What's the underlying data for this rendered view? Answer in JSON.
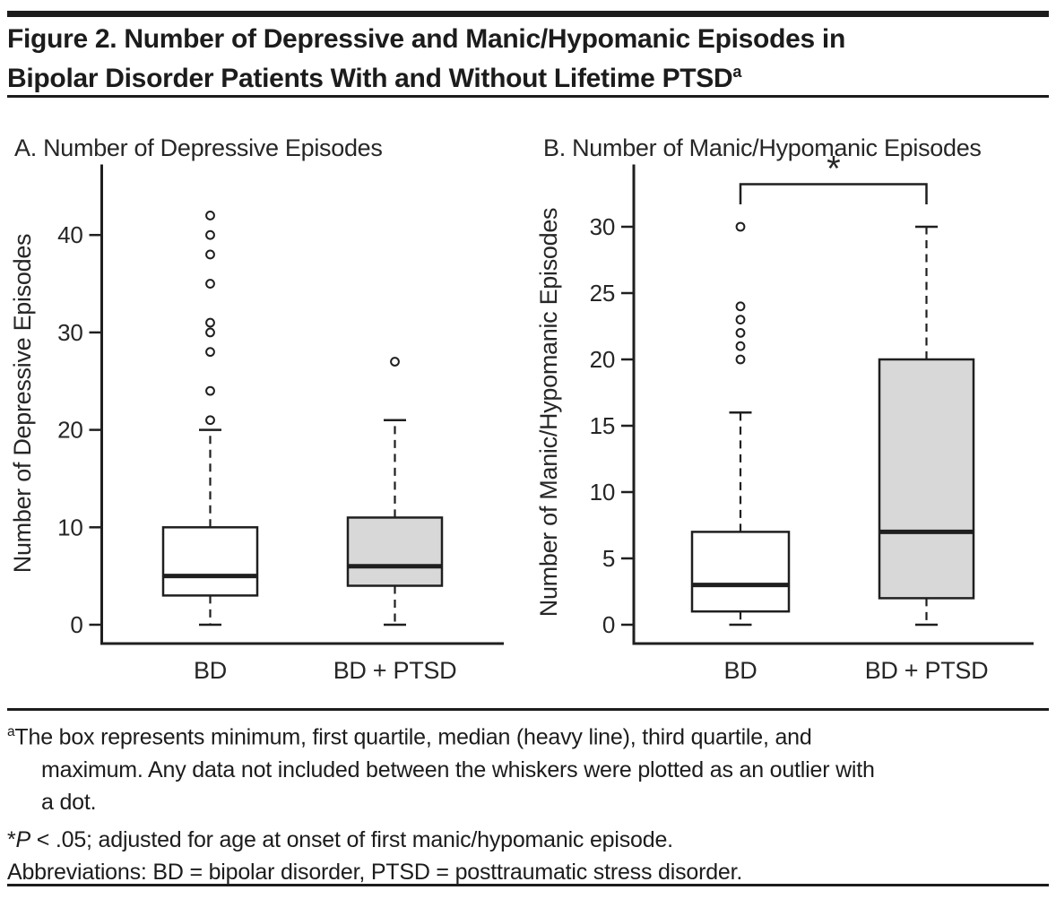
{
  "header": {
    "title_lines": [
      "Figure 2. Number of Depressive and Manic/Hypomanic Episodes in",
      "Bipolar Disorder Patients With and Without Lifetime PTSD"
    ],
    "title_superscript": "a"
  },
  "chart_data": [
    {
      "type": "boxplot",
      "title": "A. Number of Depressive Episodes",
      "ylabel": "Number of Depressive Episodes",
      "yticks": [
        0,
        10,
        20,
        30,
        40
      ],
      "ylim": [
        -2,
        47
      ],
      "grid": false,
      "categories": [
        "BD",
        "BD + PTSD"
      ],
      "groups": [
        {
          "label": "BD",
          "box_fill": "#ffffff",
          "whisker_low": 0,
          "q1": 3,
          "median": 5,
          "q3": 10,
          "whisker_high": 20,
          "outliers": [
            21,
            24,
            28,
            30,
            31,
            35,
            38,
            40,
            42
          ]
        },
        {
          "label": "BD + PTSD",
          "box_fill": "#d8d8d8",
          "whisker_low": 0,
          "q1": 4,
          "median": 6,
          "q3": 11,
          "whisker_high": 21,
          "outliers": [
            27
          ]
        }
      ]
    },
    {
      "type": "boxplot",
      "title": "B. Number of Manic/Hypomanic Episodes",
      "ylabel": "Number of Manic/Hypomanic Episodes",
      "yticks": [
        0,
        5,
        10,
        15,
        20,
        25,
        30
      ],
      "ylim": [
        -1.5,
        34.5
      ],
      "grid": false,
      "categories": [
        "BD",
        "BD + PTSD"
      ],
      "groups": [
        {
          "label": "BD",
          "box_fill": "#ffffff",
          "whisker_low": 0,
          "q1": 1,
          "median": 3,
          "q3": 7,
          "whisker_high": 16,
          "outliers": [
            20,
            21,
            22,
            23,
            24,
            30
          ]
        },
        {
          "label": "BD + PTSD",
          "box_fill": "#d8d8d8",
          "whisker_low": 0,
          "q1": 2,
          "median": 7,
          "q3": 20,
          "whisker_high": 30,
          "outliers": []
        }
      ],
      "significance": {
        "label": "*",
        "between": [
          "BD",
          "BD + PTSD"
        ]
      }
    }
  ],
  "footnotes": {
    "note_a": {
      "superscript": "a",
      "lines": [
        "The box represents minimum, first quartile, median (heavy line), third quartile, and",
        "maximum. Any data not included between the whiskers were plotted as an outlier with",
        "a dot."
      ]
    },
    "note_significance": {
      "marker": "*",
      "italic_symbol": "P",
      "text": " < .05; adjusted for age at onset of first manic/hypomanic episode."
    },
    "note_abbreviations": "Abbreviations: BD = bipolar disorder, PTSD = posttraumatic stress disorder."
  },
  "colors": {
    "ink": "#1f1f1f",
    "box_gray": "#d8d8d8",
    "background": "#ffffff"
  }
}
